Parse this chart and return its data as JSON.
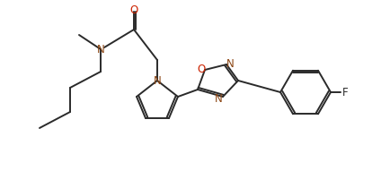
{
  "bg_color": "#ffffff",
  "line_color": "#2a2a2a",
  "atom_colors": {
    "O": "#cc2200",
    "N": "#8B4513",
    "F": "#1a1a1a"
  },
  "line_width": 1.4,
  "font_size": 8.5,
  "fig_width": 4.35,
  "fig_height": 1.91,
  "dpi": 100
}
